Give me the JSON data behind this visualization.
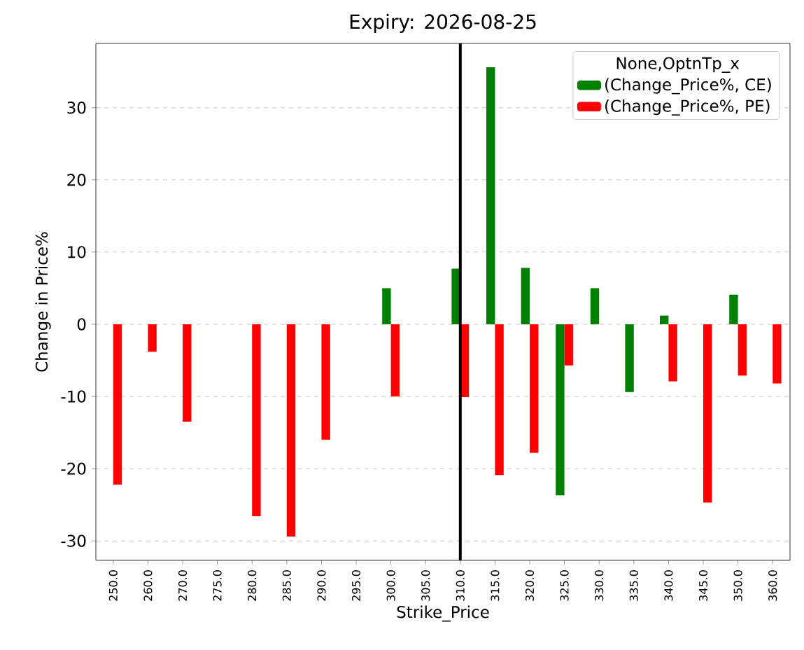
{
  "chart_data": {
    "type": "bar",
    "title": "Expiry: 2026-08-25",
    "xlabel": "Strike_Price",
    "ylabel": "Change in Price%",
    "legend_title": "None,OptnTp_x",
    "categories": [
      "250.0",
      "260.0",
      "270.0",
      "275.0",
      "280.0",
      "285.0",
      "290.0",
      "295.0",
      "300.0",
      "305.0",
      "310.0",
      "315.0",
      "320.0",
      "325.0",
      "330.0",
      "335.0",
      "340.0",
      "345.0",
      "350.0",
      "360.0"
    ],
    "series": [
      {
        "name": "(Change_Price%, CE)",
        "color": "#008000",
        "values": [
          null,
          null,
          null,
          null,
          null,
          null,
          null,
          null,
          5.0,
          null,
          7.7,
          35.6,
          7.8,
          -23.7,
          5.0,
          -9.4,
          1.2,
          null,
          4.1,
          null
        ]
      },
      {
        "name": "(Change_Price%, PE)",
        "color": "#ff0000",
        "values": [
          -22.2,
          -3.8,
          -13.5,
          null,
          -26.6,
          -29.4,
          -16.0,
          null,
          -10.0,
          null,
          -10.1,
          -20.9,
          -17.8,
          -5.7,
          null,
          null,
          -7.9,
          -24.7,
          -7.1,
          -8.2
        ]
      }
    ],
    "ylim": [
      -32.7,
      38.9
    ],
    "yticks": [
      -30,
      -20,
      -10,
      0,
      10,
      20,
      30
    ],
    "grid": "y",
    "legend": "top right",
    "ref_lines": [
      {
        "axis": "x",
        "value": "310.0",
        "color": "#000000"
      }
    ]
  }
}
